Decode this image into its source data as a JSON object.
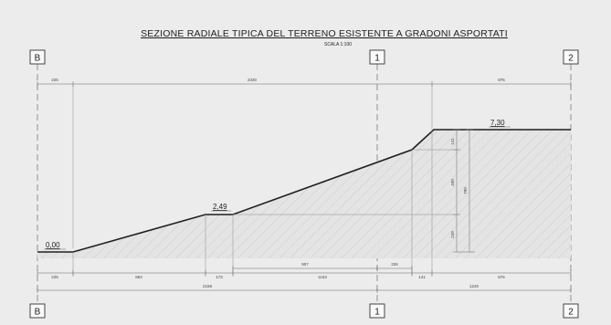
{
  "drawing": {
    "title": "SEZIONE RADIALE TIPICA DEL TERRENO ESISTENTE A GRADONI ASPORTATI",
    "scale": "SCALA 1:100"
  },
  "section_tags": {
    "left": "B",
    "middle": "1",
    "right": "2"
  },
  "levels": {
    "start": "0,00",
    "mid": "2,49",
    "top": "7,30"
  },
  "dimensions": {
    "top_row": [
      "225",
      "2330",
      "875"
    ],
    "bottom_row_1": [
      "225",
      "863",
      "173",
      "1153",
      "141",
      "875"
    ],
    "bottom_row_2": [
      "907",
      "226"
    ],
    "bottom_row_3": [
      "2168",
      "1240"
    ],
    "vertical_inner": [
      "141",
      "400",
      "249"
    ],
    "vertical_total": "790"
  },
  "colors": {
    "background": "#ececec",
    "fill_hatch": "#dcdcdc",
    "line": "#1f1f1f"
  }
}
